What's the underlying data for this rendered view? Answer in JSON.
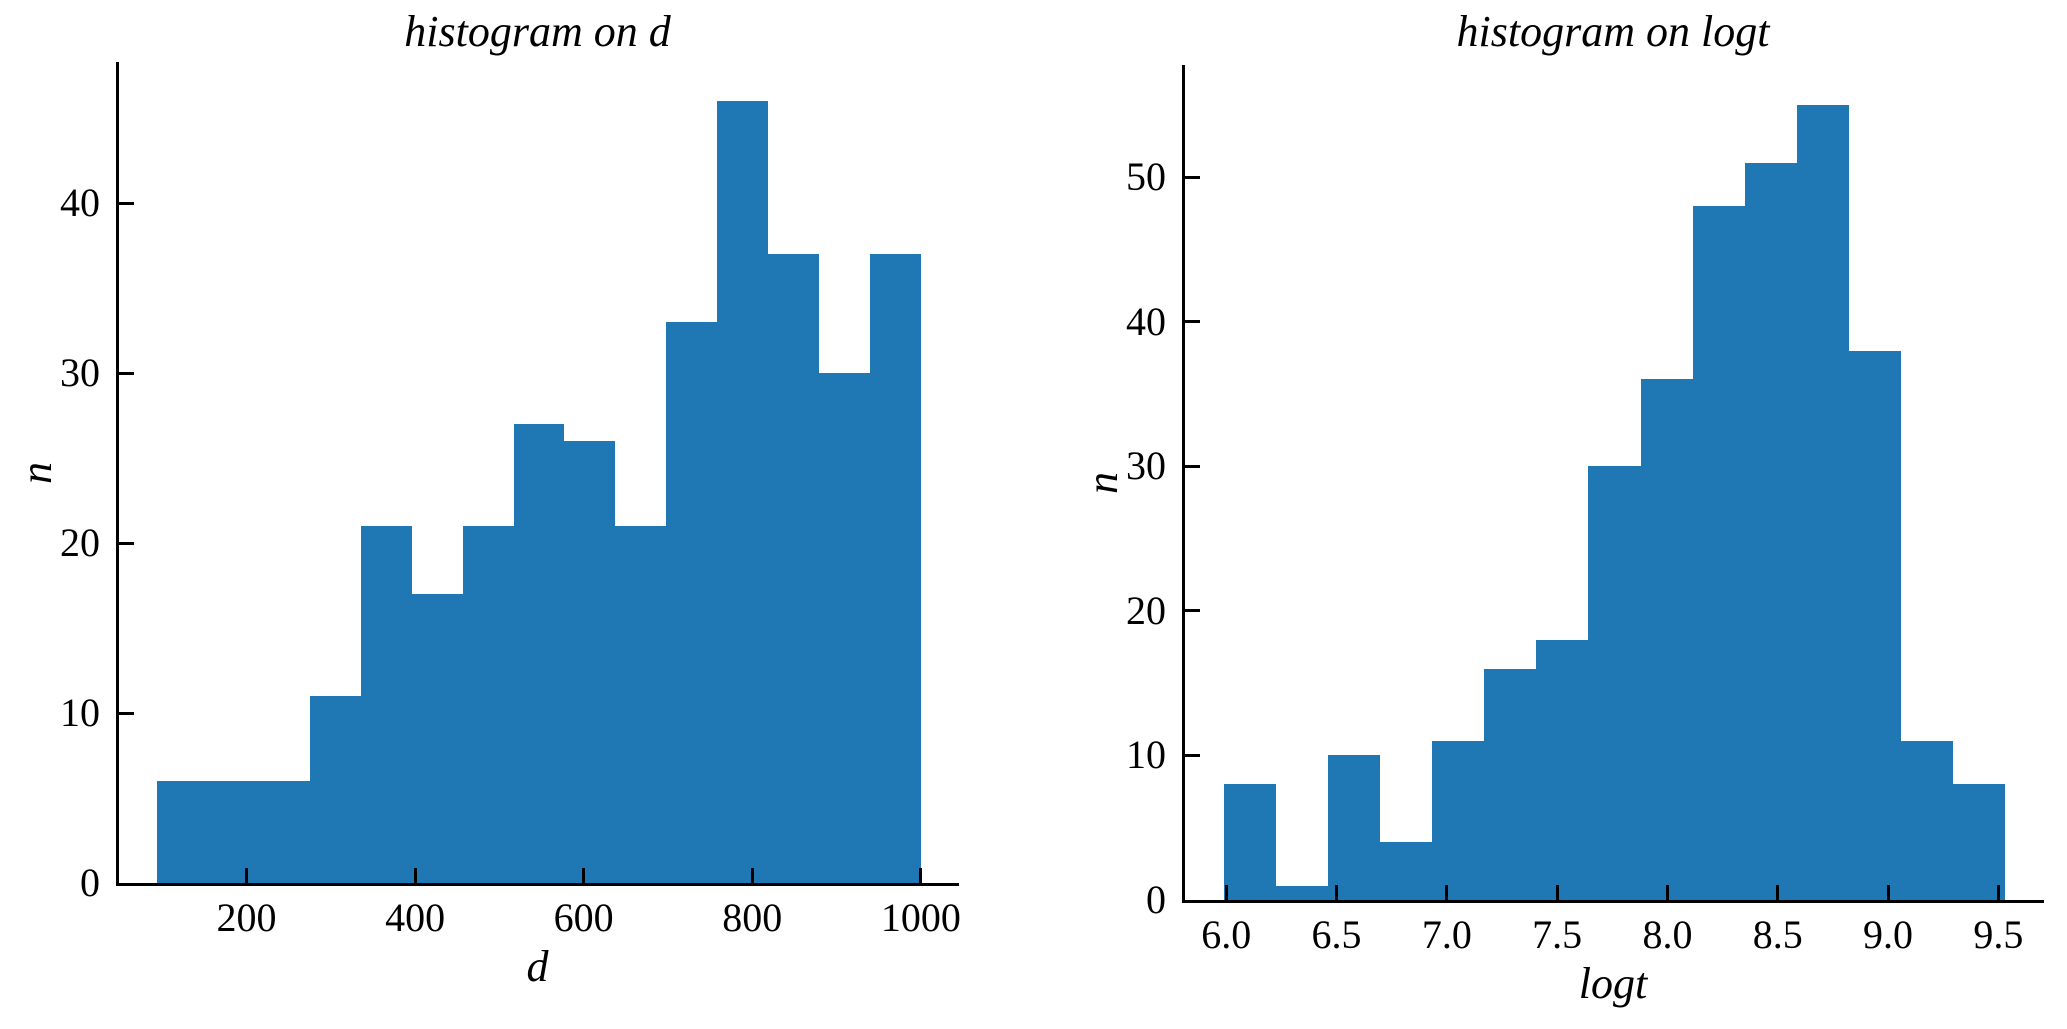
{
  "figure": {
    "background_color": "#ffffff",
    "bar_color": "#1f77b4",
    "axis_color": "#000000",
    "text_color": "#000000"
  },
  "chart_data": [
    {
      "type": "bar",
      "subtype": "histogram",
      "title": "histogram on d",
      "xlabel": "d",
      "ylabel": "n",
      "bin_edges": [
        94,
        154.4,
        214.8,
        275.2,
        335.6,
        396,
        456.4,
        516.8,
        577.2,
        637.6,
        698,
        758.4,
        818.8,
        879.2,
        939.6,
        1000
      ],
      "counts": [
        6,
        6,
        6,
        11,
        21,
        17,
        21,
        27,
        26,
        21,
        33,
        46,
        37,
        30,
        37
      ],
      "xticks": [
        200,
        400,
        600,
        800,
        1000
      ],
      "xtick_labels": [
        "200",
        "400",
        "600",
        "800",
        "1000"
      ],
      "yticks": [
        0,
        10,
        20,
        30,
        40
      ],
      "ytick_labels": [
        "0",
        "10",
        "20",
        "30",
        "40"
      ],
      "xlim": [
        48.7,
        1045.3
      ],
      "ylim": [
        0,
        48.3
      ],
      "grid": false,
      "legend": null,
      "bar_color": "#1f77b4"
    },
    {
      "type": "bar",
      "subtype": "histogram",
      "title": "histogram on logt",
      "xlabel": "logt",
      "ylabel": "n",
      "bin_edges": [
        5.99,
        6.226,
        6.462,
        6.698,
        6.934,
        7.17,
        7.406,
        7.642,
        7.878,
        8.114,
        8.35,
        8.586,
        8.822,
        9.058,
        9.294,
        9.53
      ],
      "counts": [
        8,
        1,
        10,
        4,
        11,
        16,
        18,
        30,
        36,
        48,
        51,
        55,
        38,
        11,
        8
      ],
      "xticks": [
        6.0,
        6.5,
        7.0,
        7.5,
        8.0,
        8.5,
        9.0,
        9.5
      ],
      "xtick_labels": [
        "6.0",
        "6.5",
        "7.0",
        "7.5",
        "8.0",
        "8.5",
        "9.0",
        "9.5"
      ],
      "yticks": [
        0,
        10,
        20,
        30,
        40,
        50
      ],
      "ytick_labels": [
        "0",
        "10",
        "20",
        "30",
        "40",
        "50"
      ],
      "xlim": [
        5.813,
        9.707
      ],
      "ylim": [
        0,
        57.75
      ],
      "grid": false,
      "legend": null,
      "bar_color": "#1f77b4"
    }
  ]
}
